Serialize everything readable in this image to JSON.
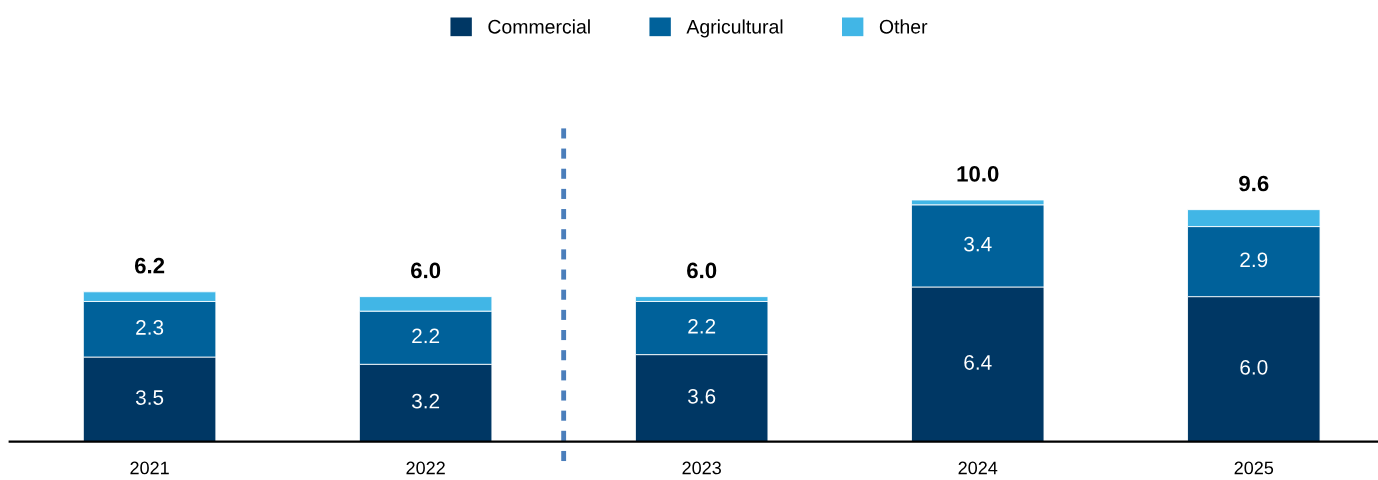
{
  "chart_data": {
    "type": "bar",
    "stacked": true,
    "categories": [
      "2021",
      "2022",
      "2023",
      "2024",
      "2025"
    ],
    "series": [
      {
        "name": "Commercial",
        "color": "#003764",
        "values": [
          3.5,
          3.2,
          3.6,
          6.4,
          6.0
        ],
        "value_labels": [
          "3.5",
          "3.2",
          "3.6",
          "6.4",
          "6.0"
        ]
      },
      {
        "name": "Agricultural",
        "color": "#00619a",
        "values": [
          2.3,
          2.2,
          2.2,
          3.4,
          2.9
        ],
        "value_labels": [
          "2.3",
          "2.2",
          "2.2",
          "3.4",
          "2.9"
        ]
      },
      {
        "name": "Other",
        "color": "#41b6e6",
        "values": [
          0.4,
          0.6,
          0.2,
          0.2,
          0.7
        ]
      }
    ],
    "totals": [
      "6.2",
      "6.0",
      "6.0",
      "10.0",
      "9.6"
    ],
    "legend": "top"
  }
}
